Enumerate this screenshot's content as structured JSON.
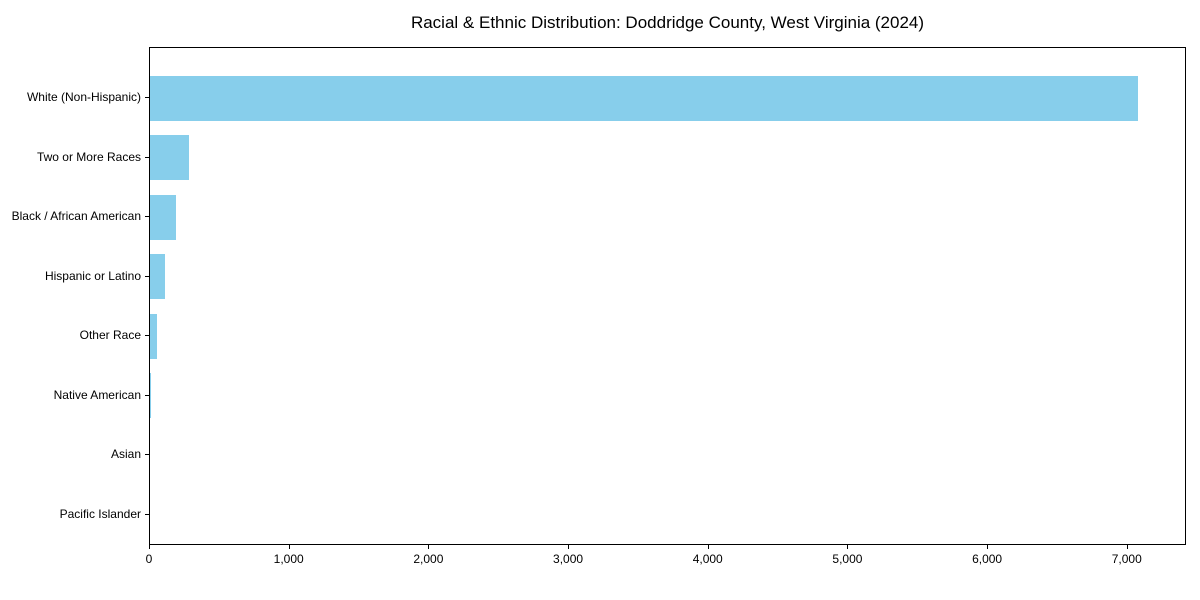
{
  "chart_data": {
    "type": "bar",
    "orientation": "horizontal",
    "title": "Racial & Ethnic Distribution: Doddridge County, West Virginia (2024)",
    "categories": [
      "White (Non-Hispanic)",
      "Two or More Races",
      "Black / African American",
      "Hispanic or Latino",
      "Other Race",
      "Native American",
      "Asian",
      "Pacific Islander"
    ],
    "values": [
      7070,
      280,
      185,
      105,
      47,
      10,
      0,
      0
    ],
    "xlabel": "",
    "ylabel": "",
    "xlim": [
      0,
      7424
    ],
    "x_tick_values": [
      0,
      1000,
      2000,
      3000,
      4000,
      5000,
      6000,
      7000
    ],
    "x_tick_labels": [
      "0",
      "1,000",
      "2,000",
      "3,000",
      "4,000",
      "5,000",
      "6,000",
      "7,000"
    ],
    "grid": false,
    "legend": null,
    "bar_color": "#87CEEB",
    "frame_color": "#000000",
    "text_color": "#000000",
    "background_color": "#ffffff"
  }
}
